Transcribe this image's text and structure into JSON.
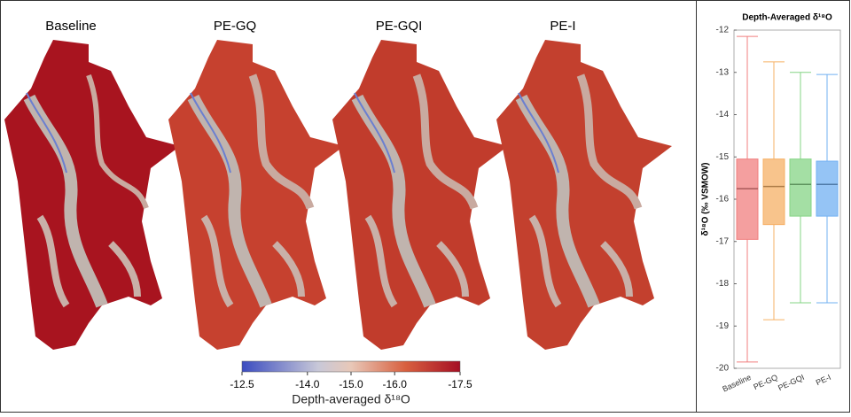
{
  "maps": {
    "panels": [
      "Baseline",
      "PE-GQ",
      "PE-GQI",
      "PE-I"
    ],
    "colorbar": {
      "label": "Depth-averaged δ¹⁸O",
      "xlim": [
        -12.5,
        -17.5
      ],
      "ticks": [
        -12.5,
        {
          "value": -14,
          "label": "-14.0"
        },
        {
          "value": -15,
          "label": "-15.0"
        },
        {
          "value": -16,
          "label": "-16.0"
        },
        -17.5
      ]
    }
  },
  "chart_data": {
    "type": "box",
    "title": "Depth-Averaged δ¹⁸O",
    "ylabel": "δ¹⁸O (‰ VSMOW)",
    "categories": [
      "Baseline",
      "PE-GQ",
      "PE-GQI",
      "PE-I"
    ],
    "boxes": [
      {
        "color": "#f07f7f",
        "min": -19.85,
        "q1": -16.95,
        "median": -15.75,
        "q3": -15.05,
        "max": -12.15
      },
      {
        "color": "#f6b065",
        "min": -18.85,
        "q1": -16.6,
        "median": -15.7,
        "q3": -15.05,
        "max": -12.75
      },
      {
        "color": "#86d486",
        "min": -18.45,
        "q1": -16.4,
        "median": -15.65,
        "q3": -15.05,
        "max": -13.0
      },
      {
        "color": "#72b0f2",
        "min": -18.45,
        "q1": -16.4,
        "median": -15.65,
        "q3": -15.1,
        "max": -13.05
      }
    ],
    "ylim": [
      -20,
      -12
    ],
    "yticks": [
      -12,
      -13,
      -14,
      -15,
      -16,
      -17,
      -18,
      -19,
      -20
    ]
  }
}
